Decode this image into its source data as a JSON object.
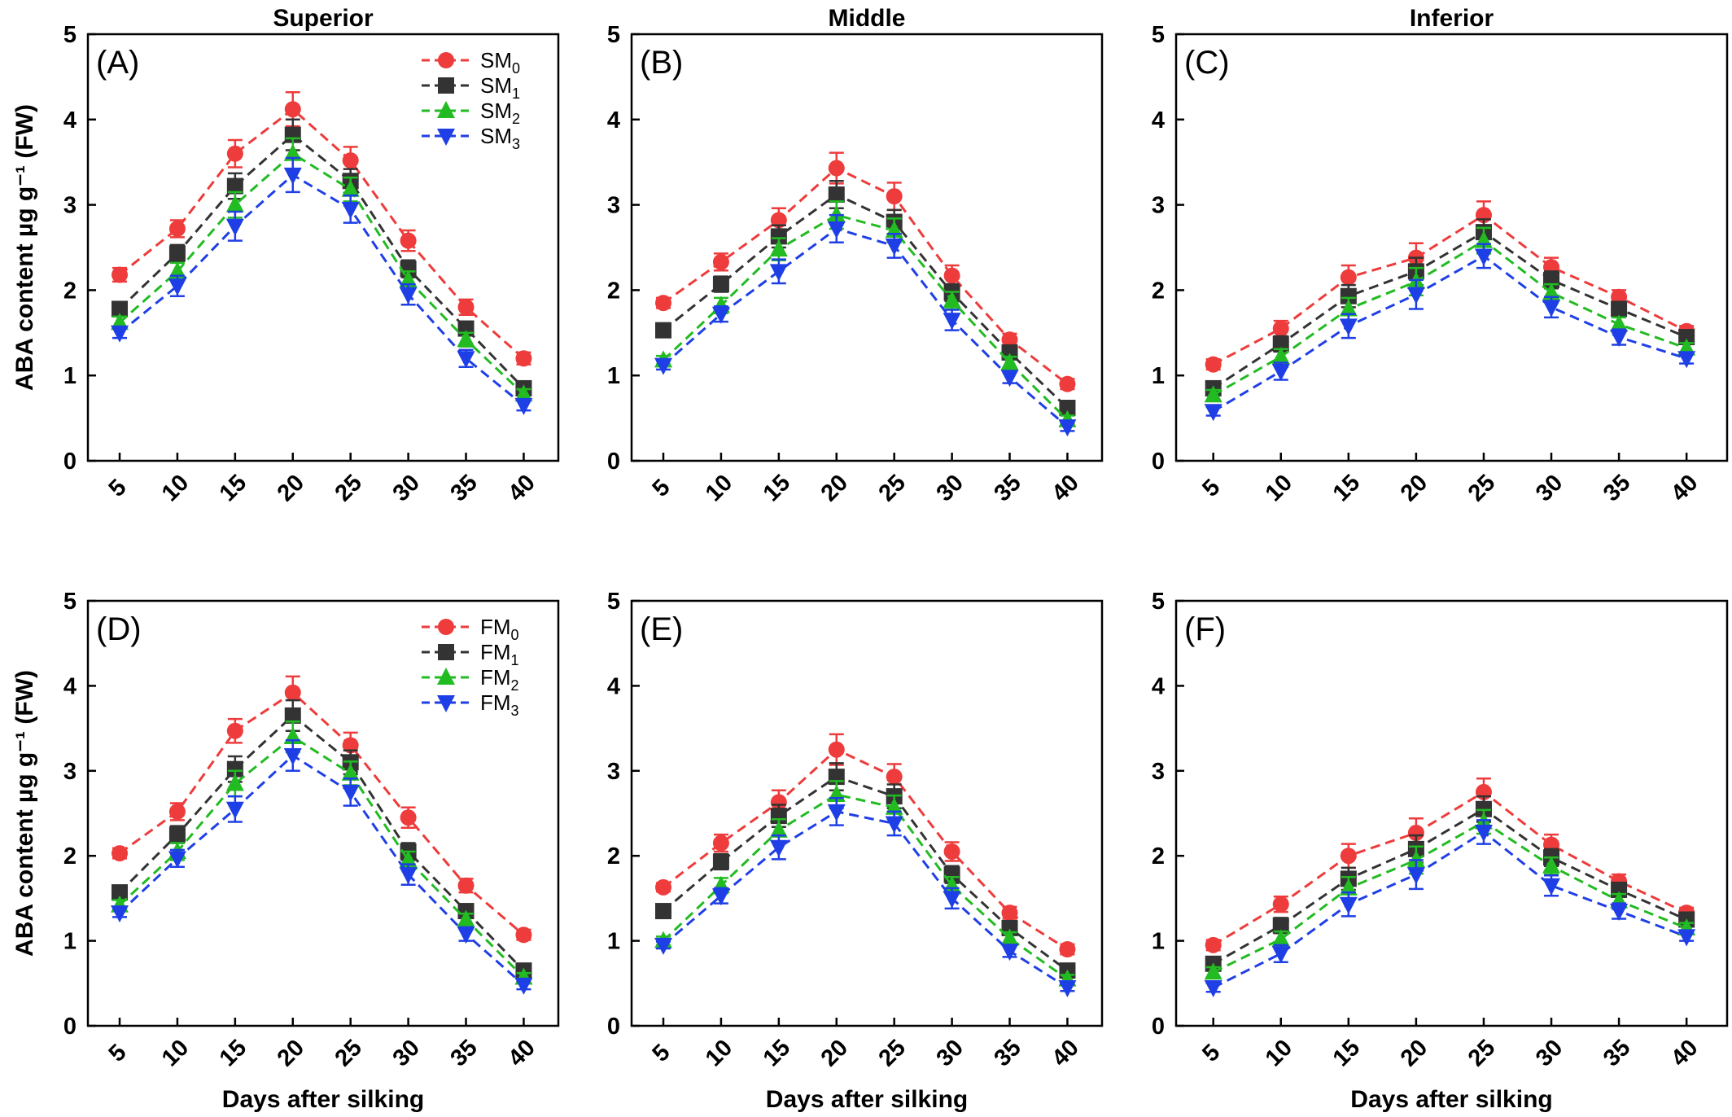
{
  "chart_data": [
    {
      "type": "line",
      "panel": "(A)",
      "title": "Superior",
      "xlabel": "",
      "ylabel": "ABA content  µg g⁻¹ (FW)",
      "x": [
        5,
        10,
        15,
        20,
        25,
        30,
        35,
        40
      ],
      "ylim": [
        0,
        5
      ],
      "legend": "top-right",
      "series": [
        {
          "name": "SM",
          "sub": "0",
          "color": "#ee3b3b",
          "marker": "circle",
          "values": [
            2.18,
            2.72,
            3.6,
            4.12,
            3.52,
            2.58,
            1.8,
            1.2
          ],
          "err": [
            0.08,
            0.1,
            0.16,
            0.2,
            0.16,
            0.12,
            0.09,
            0.07
          ]
        },
        {
          "name": "SM",
          "sub": "1",
          "color": "#333333",
          "marker": "square",
          "values": [
            1.78,
            2.43,
            3.22,
            3.82,
            3.28,
            2.25,
            1.55,
            0.85
          ],
          "err": [
            0.07,
            0.1,
            0.15,
            0.18,
            0.14,
            0.1,
            0.08,
            0.06
          ]
        },
        {
          "name": "SM",
          "sub": "2",
          "color": "#22bb22",
          "marker": "triangle-up",
          "values": [
            1.62,
            2.22,
            3.0,
            3.6,
            3.18,
            2.12,
            1.42,
            0.78
          ],
          "err": [
            0.07,
            0.1,
            0.15,
            0.18,
            0.14,
            0.1,
            0.08,
            0.06
          ]
        },
        {
          "name": "SM",
          "sub": "3",
          "color": "#1f3fe6",
          "marker": "triangle-down",
          "values": [
            1.5,
            2.05,
            2.75,
            3.35,
            2.95,
            1.95,
            1.2,
            0.65
          ],
          "err": [
            0.06,
            0.12,
            0.17,
            0.2,
            0.16,
            0.12,
            0.1,
            0.06
          ]
        }
      ]
    },
    {
      "type": "line",
      "panel": "(B)",
      "title": "Middle",
      "xlabel": "",
      "ylabel": "",
      "x": [
        5,
        10,
        15,
        20,
        25,
        30,
        35,
        40
      ],
      "ylim": [
        0,
        5
      ],
      "series": [
        {
          "name": "SM",
          "sub": "0",
          "color": "#ee3b3b",
          "marker": "circle",
          "values": [
            1.85,
            2.33,
            2.82,
            3.43,
            3.1,
            2.17,
            1.42,
            0.9
          ],
          "err": [
            0.06,
            0.1,
            0.14,
            0.18,
            0.16,
            0.12,
            0.07,
            0.06
          ]
        },
        {
          "name": "SM",
          "sub": "1",
          "color": "#333333",
          "marker": "square",
          "values": [
            1.53,
            2.07,
            2.63,
            3.12,
            2.8,
            1.97,
            1.27,
            0.62
          ],
          "err": [
            0.06,
            0.09,
            0.13,
            0.16,
            0.14,
            0.1,
            0.08,
            0.05
          ]
        },
        {
          "name": "SM",
          "sub": "2",
          "color": "#22bb22",
          "marker": "triangle-up",
          "values": [
            1.18,
            1.82,
            2.48,
            2.88,
            2.7,
            1.88,
            1.15,
            0.48
          ],
          "err": [
            0.05,
            0.09,
            0.13,
            0.16,
            0.14,
            0.1,
            0.07,
            0.05
          ]
        },
        {
          "name": "SM",
          "sub": "3",
          "color": "#1f3fe6",
          "marker": "triangle-down",
          "values": [
            1.12,
            1.72,
            2.22,
            2.72,
            2.52,
            1.65,
            0.98,
            0.4
          ],
          "err": [
            0.05,
            0.09,
            0.14,
            0.16,
            0.14,
            0.12,
            0.07,
            0.05
          ]
        }
      ]
    },
    {
      "type": "line",
      "panel": "(C)",
      "title": "Inferior",
      "xlabel": "",
      "ylabel": "",
      "x": [
        5,
        10,
        15,
        20,
        25,
        30,
        35,
        40
      ],
      "ylim": [
        0,
        5
      ],
      "series": [
        {
          "name": "SM",
          "sub": "0",
          "color": "#ee3b3b",
          "marker": "circle",
          "values": [
            1.13,
            1.55,
            2.15,
            2.38,
            2.88,
            2.27,
            1.92,
            1.52
          ],
          "err": [
            0.06,
            0.09,
            0.14,
            0.17,
            0.16,
            0.11,
            0.08,
            0.06
          ]
        },
        {
          "name": "SM",
          "sub": "1",
          "color": "#333333",
          "marker": "square",
          "values": [
            0.85,
            1.37,
            1.93,
            2.22,
            2.68,
            2.12,
            1.78,
            1.45
          ],
          "err": [
            0.06,
            0.09,
            0.13,
            0.16,
            0.15,
            0.1,
            0.08,
            0.06
          ]
        },
        {
          "name": "SM",
          "sub": "2",
          "color": "#22bb22",
          "marker": "triangle-up",
          "values": [
            0.77,
            1.22,
            1.78,
            2.1,
            2.58,
            1.97,
            1.6,
            1.32
          ],
          "err": [
            0.06,
            0.09,
            0.13,
            0.16,
            0.15,
            0.1,
            0.08,
            0.06
          ]
        },
        {
          "name": "SM",
          "sub": "3",
          "color": "#1f3fe6",
          "marker": "triangle-down",
          "values": [
            0.58,
            1.05,
            1.58,
            1.95,
            2.4,
            1.8,
            1.45,
            1.2
          ],
          "err": [
            0.05,
            0.1,
            0.14,
            0.17,
            0.14,
            0.12,
            0.09,
            0.06
          ]
        }
      ]
    },
    {
      "type": "line",
      "panel": "(D)",
      "title": "",
      "xlabel": "Days after silking",
      "ylabel": "ABA content µg g⁻¹ (FW)",
      "x": [
        5,
        10,
        15,
        20,
        25,
        30,
        35,
        40
      ],
      "ylim": [
        0,
        5
      ],
      "legend": "top-right",
      "series": [
        {
          "name": "FM",
          "sub": "0",
          "color": "#ee3b3b",
          "marker": "circle",
          "values": [
            2.03,
            2.52,
            3.47,
            3.92,
            3.3,
            2.45,
            1.65,
            1.07
          ],
          "err": [
            0.06,
            0.1,
            0.14,
            0.19,
            0.15,
            0.12,
            0.08,
            0.06
          ]
        },
        {
          "name": "FM",
          "sub": "1",
          "color": "#333333",
          "marker": "square",
          "values": [
            1.57,
            2.25,
            3.02,
            3.65,
            3.1,
            2.05,
            1.35,
            0.65
          ],
          "err": [
            0.06,
            0.1,
            0.15,
            0.18,
            0.14,
            0.1,
            0.07,
            0.05
          ]
        },
        {
          "name": "FM",
          "sub": "2",
          "color": "#22bb22",
          "marker": "triangle-up",
          "values": [
            1.42,
            2.05,
            2.85,
            3.4,
            2.97,
            1.95,
            1.25,
            0.57
          ],
          "err": [
            0.06,
            0.1,
            0.15,
            0.18,
            0.14,
            0.1,
            0.07,
            0.05
          ]
        },
        {
          "name": "FM",
          "sub": "3",
          "color": "#1f3fe6",
          "marker": "triangle-down",
          "values": [
            1.33,
            1.97,
            2.55,
            3.18,
            2.75,
            1.78,
            1.08,
            0.48
          ],
          "err": [
            0.05,
            0.1,
            0.15,
            0.18,
            0.16,
            0.12,
            0.08,
            0.05
          ]
        }
      ]
    },
    {
      "type": "line",
      "panel": "(E)",
      "title": "",
      "xlabel": "Days after silking",
      "ylabel": "",
      "x": [
        5,
        10,
        15,
        20,
        25,
        30,
        35,
        40
      ],
      "ylim": [
        0,
        5
      ],
      "series": [
        {
          "name": "FM",
          "sub": "0",
          "color": "#ee3b3b",
          "marker": "circle",
          "values": [
            1.63,
            2.15,
            2.63,
            3.25,
            2.93,
            2.05,
            1.33,
            0.9
          ],
          "err": [
            0.05,
            0.1,
            0.14,
            0.18,
            0.15,
            0.11,
            0.07,
            0.06
          ]
        },
        {
          "name": "FM",
          "sub": "1",
          "color": "#333333",
          "marker": "square",
          "values": [
            1.35,
            1.93,
            2.47,
            2.93,
            2.7,
            1.78,
            1.15,
            0.65
          ],
          "err": [
            0.05,
            0.09,
            0.13,
            0.16,
            0.14,
            0.1,
            0.07,
            0.05
          ]
        },
        {
          "name": "FM",
          "sub": "2",
          "color": "#22bb22",
          "marker": "triangle-up",
          "values": [
            1.0,
            1.65,
            2.3,
            2.72,
            2.57,
            1.65,
            1.03,
            0.55
          ],
          "err": [
            0.05,
            0.09,
            0.13,
            0.16,
            0.14,
            0.1,
            0.07,
            0.05
          ]
        },
        {
          "name": "FM",
          "sub": "3",
          "color": "#1f3fe6",
          "marker": "triangle-down",
          "values": [
            0.95,
            1.53,
            2.1,
            2.52,
            2.38,
            1.5,
            0.88,
            0.45
          ],
          "err": [
            0.04,
            0.09,
            0.14,
            0.16,
            0.14,
            0.12,
            0.07,
            0.04
          ]
        }
      ]
    },
    {
      "type": "line",
      "panel": "(F)",
      "title": "",
      "xlabel": "Days after silking",
      "ylabel": "",
      "x": [
        5,
        10,
        15,
        20,
        25,
        30,
        35,
        40
      ],
      "ylim": [
        0,
        5
      ],
      "series": [
        {
          "name": "FM",
          "sub": "0",
          "color": "#ee3b3b",
          "marker": "circle",
          "values": [
            0.95,
            1.43,
            2.0,
            2.27,
            2.75,
            2.13,
            1.7,
            1.33
          ],
          "err": [
            0.06,
            0.09,
            0.14,
            0.17,
            0.16,
            0.12,
            0.08,
            0.06
          ]
        },
        {
          "name": "FM",
          "sub": "1",
          "color": "#333333",
          "marker": "square",
          "values": [
            0.73,
            1.18,
            1.73,
            2.08,
            2.55,
            1.98,
            1.6,
            1.25
          ],
          "err": [
            0.06,
            0.09,
            0.13,
            0.16,
            0.15,
            0.1,
            0.08,
            0.06
          ]
        },
        {
          "name": "FM",
          "sub": "2",
          "color": "#22bb22",
          "marker": "triangle-up",
          "values": [
            0.63,
            1.02,
            1.62,
            1.95,
            2.4,
            1.88,
            1.47,
            1.15
          ],
          "err": [
            0.06,
            0.09,
            0.13,
            0.16,
            0.14,
            0.1,
            0.08,
            0.06
          ]
        },
        {
          "name": "FM",
          "sub": "3",
          "color": "#1f3fe6",
          "marker": "triangle-down",
          "values": [
            0.45,
            0.85,
            1.43,
            1.78,
            2.28,
            1.65,
            1.35,
            1.05
          ],
          "err": [
            0.05,
            0.1,
            0.14,
            0.17,
            0.14,
            0.12,
            0.09,
            0.05
          ]
        }
      ]
    }
  ]
}
